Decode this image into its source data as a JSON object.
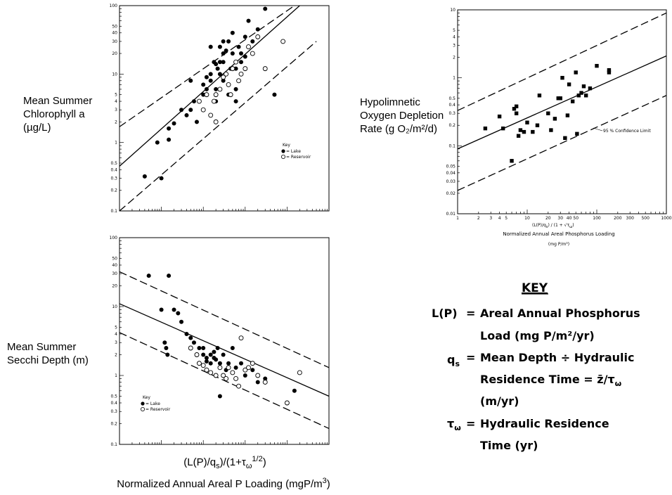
{
  "labels": {
    "chl_ylabel_1": "Mean Summer",
    "chl_ylabel_2": "Chlorophyll a",
    "chl_ylabel_3": "(µg/L)",
    "ox_ylabel_1": "Hypolimnetic",
    "ox_ylabel_2": "Oxygen Depletion",
    "ox_ylabel_3": "Rate (g O₂/m²/d)",
    "sec_ylabel_1": "Mean Summer",
    "sec_ylabel_2": "Secchi Depth (m)",
    "bottom_xlabel_1": "(L(P)/q",
    "bottom_xlabel_1s": "s",
    "bottom_xlabel_1b": ")/(1+τ",
    "bottom_xlabel_1w": "ω",
    "bottom_xlabel_1e": "1/2",
    "bottom_xlabel_1c": ")",
    "bottom_xlabel_2": "Normalized Annual Areal P Loading (mgP/m",
    "bottom_xlabel_2e": "3",
    "bottom_xlabel_2c": ")",
    "ox_xlabel_1": "(L(P)/q",
    "ox_xlabel_1s": "s",
    "ox_xlabel_1b": ") / (1 + √τ",
    "ox_xlabel_1w": "ω",
    "ox_xlabel_1c": ")",
    "ox_xlabel_2": "Normalized Annual Areal Phosphorus Loading",
    "ox_xlabel_3": "(mg P/m³)",
    "ox_conf_label": "95 % Confidence Limit",
    "chl_key_title": "Key",
    "chl_key_lake": "= Lake",
    "chl_key_res": "= Reservoir",
    "sec_key_title": "Key",
    "sec_key_lake": "= Lake",
    "sec_key_res": "= Reservoir"
  },
  "key": {
    "title": "KEY",
    "lp_sym": "L(P)",
    "lp_eq": "=",
    "lp_1": "Areal Annual Phosphorus",
    "lp_2": "Load (mg P/m²/yr)",
    "qs_sym": "q",
    "qs_sub": "s",
    "qs_eq": "=",
    "qs_1": "Mean Depth ÷ Hydraulic",
    "qs_2": "Residence Time = z̄/τ",
    "qs_2w": "ω",
    "qs_3": "(m/yr)",
    "tau_sym": "τ",
    "tau_w": "ω",
    "tau_eq": "=",
    "tau_1": "Hydraulic Residence",
    "tau_2": "Time (yr)"
  },
  "colors": {
    "ink": "#000000",
    "background": "#ffffff"
  },
  "chart_data": [
    {
      "id": "chl",
      "type": "scatter",
      "title": "",
      "ylabel": "Mean Summer Chlorophyll a (µg/L)",
      "xlabel": "",
      "y_scale": "log",
      "ylim": [
        0.1,
        100
      ],
      "y_ticks": [
        "100",
        "50",
        "40",
        "30",
        "20",
        "10",
        "5",
        "4",
        "3",
        "2",
        "1",
        "0.5",
        "0.4",
        "0.3",
        "0.2",
        "0.1"
      ],
      "x_scale": "log",
      "xlim": [
        0.1,
        10000
      ],
      "legend": "right-middle",
      "series": [
        {
          "name": "Lake",
          "marker": "filled",
          "points": [
            [
              0.4,
              0.32
            ],
            [
              1,
              0.3
            ],
            [
              0.8,
              1.0
            ],
            [
              1.5,
              1.1
            ],
            [
              1.5,
              1.6
            ],
            [
              2,
              1.9
            ],
            [
              3,
              3
            ],
            [
              4,
              2.5
            ],
            [
              5,
              8
            ],
            [
              5,
              3
            ],
            [
              6,
              4
            ],
            [
              7,
              2
            ],
            [
              10,
              5
            ],
            [
              10,
              7
            ],
            [
              12,
              9
            ],
            [
              12,
              6
            ],
            [
              15,
              8
            ],
            [
              15,
              10
            ],
            [
              18,
              15
            ],
            [
              20,
              14
            ],
            [
              20,
              6
            ],
            [
              22,
              12
            ],
            [
              25,
              25
            ],
            [
              25,
              15
            ],
            [
              30,
              15
            ],
            [
              30,
              20
            ],
            [
              30,
              30
            ],
            [
              35,
              22
            ],
            [
              40,
              30
            ],
            [
              45,
              12
            ],
            [
              50,
              40
            ],
            [
              60,
              12
            ],
            [
              60,
              6
            ],
            [
              70,
              25
            ],
            [
              80,
              20
            ],
            [
              100,
              35
            ],
            [
              100,
              18
            ],
            [
              120,
              60
            ],
            [
              150,
              30
            ],
            [
              200,
              45
            ],
            [
              300,
              90
            ],
            [
              500,
              5
            ],
            [
              60,
              4
            ],
            [
              40,
              5
            ],
            [
              20,
              4
            ],
            [
              15,
              25
            ],
            [
              30,
              8
            ],
            [
              25,
              10
            ],
            [
              50,
              20
            ],
            [
              80,
              15
            ]
          ]
        },
        {
          "name": "Reservoir",
          "marker": "open",
          "points": [
            [
              8,
              4
            ],
            [
              10,
              3
            ],
            [
              12,
              5
            ],
            [
              15,
              2.5
            ],
            [
              18,
              4
            ],
            [
              20,
              5
            ],
            [
              25,
              6
            ],
            [
              30,
              9
            ],
            [
              35,
              10
            ],
            [
              40,
              7
            ],
            [
              50,
              12
            ],
            [
              60,
              15
            ],
            [
              80,
              10
            ],
            [
              100,
              12
            ],
            [
              120,
              25
            ],
            [
              150,
              20
            ],
            [
              200,
              35
            ],
            [
              300,
              12
            ],
            [
              800,
              30
            ],
            [
              70,
              8
            ],
            [
              45,
              5
            ],
            [
              20,
              2
            ]
          ]
        }
      ],
      "fit_line": {
        "x": [
          0.1,
          2000
        ],
        "y": [
          0.45,
          100
        ]
      },
      "upper_limit": {
        "x": [
          0.1,
          1500
        ],
        "y": [
          1.7,
          100
        ]
      },
      "lower_limit": {
        "x": [
          0.1,
          5000
        ],
        "y": [
          0.1,
          30
        ]
      }
    },
    {
      "id": "ox",
      "type": "scatter",
      "title": "",
      "ylabel": "Hypolimnetic Oxygen Depletion Rate (g O2/m2/d)",
      "xlabel": "(L(P)/qs)/(1+√τω) Normalized Annual Areal Phosphorus Loading (mg P/m³)",
      "y_scale": "log",
      "ylim": [
        0.01,
        10
      ],
      "y_ticks": [
        "10",
        "5",
        "4",
        "3",
        "2",
        "1",
        "0.5",
        "0.4",
        "0.3",
        "0.2",
        "0.1",
        "0.05",
        "0.04",
        "0.03",
        "0.02",
        "0.01"
      ],
      "x_scale": "log",
      "xlim": [
        1,
        1000
      ],
      "x_ticks": [
        "1",
        "2",
        "3",
        "4",
        "5",
        "10",
        "20",
        "30",
        "40",
        "50",
        "100",
        "200",
        "300",
        "500",
        "1000"
      ],
      "series": [
        {
          "name": "",
          "marker": "square",
          "points": [
            [
              2.5,
              0.18
            ],
            [
              4,
              0.27
            ],
            [
              4.5,
              0.18
            ],
            [
              6,
              0.06
            ],
            [
              6.5,
              0.35
            ],
            [
              7,
              0.38
            ],
            [
              7,
              0.3
            ],
            [
              7.5,
              0.14
            ],
            [
              8,
              0.17
            ],
            [
              9,
              0.16
            ],
            [
              10,
              0.22
            ],
            [
              12,
              0.16
            ],
            [
              14,
              0.2
            ],
            [
              15,
              0.55
            ],
            [
              20,
              0.3
            ],
            [
              22,
              0.17
            ],
            [
              25,
              0.25
            ],
            [
              28,
              0.5
            ],
            [
              30,
              0.5
            ],
            [
              32,
              1.0
            ],
            [
              35,
              0.13
            ],
            [
              38,
              0.28
            ],
            [
              40,
              0.8
            ],
            [
              45,
              0.45
            ],
            [
              50,
              1.2
            ],
            [
              52,
              0.15
            ],
            [
              55,
              0.55
            ],
            [
              60,
              0.6
            ],
            [
              65,
              0.75
            ],
            [
              70,
              0.55
            ],
            [
              80,
              0.7
            ],
            [
              100,
              1.5
            ],
            [
              150,
              1.2
            ],
            [
              150,
              1.3
            ]
          ]
        }
      ],
      "fit_line": {
        "x": [
          1,
          1000
        ],
        "y": [
          0.09,
          2.1
        ]
      },
      "upper_limit": {
        "x": [
          1,
          1000
        ],
        "y": [
          0.33,
          9
        ]
      },
      "lower_limit": {
        "x": [
          1,
          1000
        ],
        "y": [
          0.022,
          0.55
        ]
      },
      "annotation": "95 % Confidence Limit"
    },
    {
      "id": "sec",
      "type": "scatter",
      "title": "",
      "ylabel": "Mean Summer Secchi Depth (m)",
      "xlabel": "(L(P)/qs)/(1+τω^1/2) Normalized Annual Areal P Loading (mgP/m3)",
      "y_scale": "log",
      "ylim": [
        0.1,
        100
      ],
      "y_ticks": [
        "100",
        "50",
        "40",
        "30",
        "20",
        "10",
        "5",
        "4",
        "3",
        "2",
        "1",
        "0.5",
        "0.4",
        "0.3",
        "0.2",
        "0.1"
      ],
      "x_scale": "log",
      "xlim": [
        0.1,
        10000
      ],
      "legend": "left-lower",
      "series": [
        {
          "name": "Lake",
          "marker": "filled",
          "points": [
            [
              0.5,
              28
            ],
            [
              1,
              9
            ],
            [
              1.5,
              28
            ],
            [
              2,
              9
            ],
            [
              1.2,
              3
            ],
            [
              1.3,
              2.5
            ],
            [
              1.4,
              2
            ],
            [
              2.5,
              8
            ],
            [
              3,
              6
            ],
            [
              4,
              4
            ],
            [
              5,
              3.5
            ],
            [
              6,
              3
            ],
            [
              8,
              2.5
            ],
            [
              10,
              2.5
            ],
            [
              10,
              2
            ],
            [
              12,
              1.8
            ],
            [
              15,
              2
            ],
            [
              15,
              1.5
            ],
            [
              18,
              2.2
            ],
            [
              20,
              1.7
            ],
            [
              25,
              1.5
            ],
            [
              30,
              2.0
            ],
            [
              35,
              1.2
            ],
            [
              40,
              1.5
            ],
            [
              50,
              2.5
            ],
            [
              60,
              1.3
            ],
            [
              80,
              1.5
            ],
            [
              100,
              1.0
            ],
            [
              150,
              1.2
            ],
            [
              200,
              0.8
            ],
            [
              300,
              0.9
            ],
            [
              1500,
              0.6
            ],
            [
              25,
              0.5
            ],
            [
              12,
              1.6
            ],
            [
              18,
              1.8
            ],
            [
              22,
              2.5
            ]
          ]
        },
        {
          "name": "Reservoir",
          "marker": "open",
          "points": [
            [
              5,
              2.5
            ],
            [
              7,
              2
            ],
            [
              8,
              1.5
            ],
            [
              10,
              1.4
            ],
            [
              12,
              1.2
            ],
            [
              15,
              1.1
            ],
            [
              20,
              1.0
            ],
            [
              25,
              1.3
            ],
            [
              30,
              1.0
            ],
            [
              35,
              0.9
            ],
            [
              40,
              1.3
            ],
            [
              50,
              1.1
            ],
            [
              60,
              0.9
            ],
            [
              70,
              0.7
            ],
            [
              80,
              3.5
            ],
            [
              100,
              1.2
            ],
            [
              120,
              1.3
            ],
            [
              150,
              1.5
            ],
            [
              200,
              1.0
            ],
            [
              300,
              0.8
            ],
            [
              1000,
              0.4
            ],
            [
              2000,
              1.1
            ]
          ]
        }
      ],
      "fit_line": {
        "x": [
          0.1,
          10000
        ],
        "y": [
          11,
          0.5
        ]
      },
      "upper_limit": {
        "x": [
          0.1,
          10000
        ],
        "y": [
          32,
          1.3
        ]
      },
      "lower_limit": {
        "x": [
          0.1,
          10000
        ],
        "y": [
          4.2,
          0.17
        ]
      }
    }
  ]
}
